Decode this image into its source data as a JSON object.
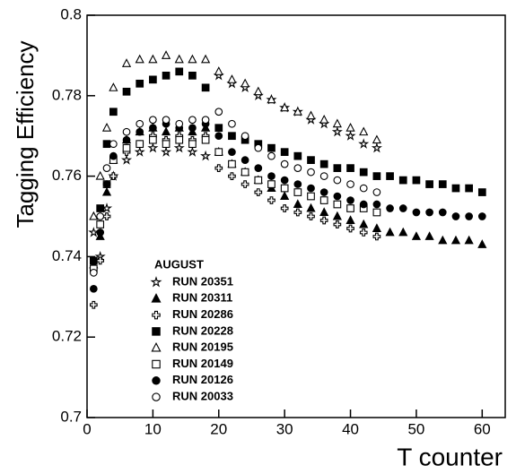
{
  "chart_data": {
    "type": "scatter",
    "xlabel": "T counter",
    "ylabel": "Tagging Efficiency",
    "legend_title": "AUGUST",
    "xlim": [
      0,
      63.5
    ],
    "ylim": [
      0.7,
      0.8
    ],
    "xticks": [
      0,
      10,
      20,
      30,
      40,
      50,
      60
    ],
    "yticks": [
      0.7,
      0.72,
      0.74,
      0.76,
      0.78,
      0.8
    ],
    "legend": "lower left",
    "series": [
      {
        "name": "RUN 20351",
        "marker": "star",
        "filled": false,
        "color": "#000000",
        "x": [
          1,
          2,
          3,
          4,
          6,
          8,
          10,
          12,
          14,
          16,
          18,
          20,
          22,
          24,
          26,
          28,
          30,
          32,
          34,
          36,
          38,
          40,
          42,
          44
        ],
        "values": [
          0.746,
          0.74,
          0.752,
          0.76,
          0.764,
          0.766,
          0.767,
          0.766,
          0.767,
          0.766,
          0.765,
          0.785,
          0.783,
          0.782,
          0.78,
          0.779,
          0.777,
          0.776,
          0.774,
          0.773,
          0.771,
          0.77,
          0.768,
          0.767
        ]
      },
      {
        "name": "RUN 20311",
        "marker": "triangle",
        "filled": true,
        "color": "#000000",
        "x": [
          1,
          2,
          3,
          4,
          6,
          8,
          10,
          12,
          14,
          16,
          18,
          20,
          22,
          24,
          26,
          28,
          30,
          32,
          34,
          36,
          38,
          40,
          42,
          44,
          46,
          48,
          50,
          52,
          54,
          56,
          58,
          60
        ],
        "values": [
          0.738,
          0.745,
          0.756,
          0.764,
          0.769,
          0.771,
          0.772,
          0.771,
          0.772,
          0.771,
          0.772,
          0.766,
          0.763,
          0.761,
          0.759,
          0.757,
          0.755,
          0.753,
          0.752,
          0.751,
          0.75,
          0.749,
          0.748,
          0.747,
          0.746,
          0.746,
          0.745,
          0.745,
          0.744,
          0.744,
          0.744,
          0.743
        ]
      },
      {
        "name": "RUN 20286",
        "marker": "cross",
        "filled": false,
        "color": "#000000",
        "x": [
          1,
          2,
          3,
          4,
          6,
          8,
          10,
          12,
          14,
          16,
          18,
          20,
          22,
          24,
          26,
          28,
          30,
          32,
          34,
          36,
          38,
          40,
          42,
          44
        ],
        "values": [
          0.728,
          0.739,
          0.75,
          0.76,
          0.766,
          0.768,
          0.77,
          0.769,
          0.77,
          0.769,
          0.77,
          0.762,
          0.76,
          0.758,
          0.756,
          0.754,
          0.752,
          0.751,
          0.75,
          0.749,
          0.748,
          0.747,
          0.746,
          0.745
        ]
      },
      {
        "name": "RUN 20228",
        "marker": "square",
        "filled": true,
        "color": "#000000",
        "x": [
          1,
          2,
          3,
          4,
          6,
          8,
          10,
          12,
          14,
          16,
          18,
          20,
          22,
          24,
          26,
          28,
          30,
          32,
          34,
          36,
          38,
          40,
          42,
          44,
          46,
          48,
          50,
          52,
          54,
          56,
          58,
          60
        ],
        "values": [
          0.739,
          0.752,
          0.768,
          0.776,
          0.781,
          0.783,
          0.784,
          0.785,
          0.786,
          0.785,
          0.782,
          0.772,
          0.77,
          0.769,
          0.768,
          0.767,
          0.766,
          0.765,
          0.764,
          0.763,
          0.762,
          0.762,
          0.761,
          0.76,
          0.76,
          0.759,
          0.759,
          0.758,
          0.758,
          0.757,
          0.757,
          0.756
        ]
      },
      {
        "name": "RUN 20195",
        "marker": "triangle",
        "filled": false,
        "color": "#000000",
        "x": [
          1,
          2,
          3,
          4,
          6,
          8,
          10,
          12,
          14,
          16,
          18,
          20,
          22,
          24,
          26,
          28,
          30,
          32,
          34,
          36,
          38,
          40,
          42,
          44
        ],
        "values": [
          0.75,
          0.76,
          0.772,
          0.782,
          0.788,
          0.789,
          0.789,
          0.79,
          0.789,
          0.789,
          0.789,
          0.786,
          0.784,
          0.783,
          0.781,
          0.779,
          0.777,
          0.776,
          0.775,
          0.774,
          0.773,
          0.772,
          0.771,
          0.769
        ]
      },
      {
        "name": "RUN 20149",
        "marker": "square",
        "filled": false,
        "color": "#000000",
        "x": [
          1,
          2,
          3,
          4,
          6,
          8,
          10,
          12,
          14,
          16,
          18,
          20,
          22,
          24,
          26,
          28,
          30,
          32,
          34,
          36,
          38,
          40,
          42,
          44
        ],
        "values": [
          0.737,
          0.748,
          0.758,
          0.764,
          0.767,
          0.768,
          0.769,
          0.768,
          0.769,
          0.768,
          0.769,
          0.766,
          0.763,
          0.761,
          0.759,
          0.758,
          0.757,
          0.756,
          0.755,
          0.754,
          0.753,
          0.752,
          0.752,
          0.751
        ]
      },
      {
        "name": "RUN 20126",
        "marker": "circle",
        "filled": true,
        "color": "#000000",
        "x": [
          1,
          2,
          3,
          4,
          6,
          8,
          10,
          12,
          14,
          16,
          18,
          20,
          22,
          24,
          26,
          28,
          30,
          32,
          34,
          36,
          38,
          40,
          42,
          44,
          46,
          48,
          50,
          52,
          54,
          56,
          58,
          60
        ],
        "values": [
          0.732,
          0.746,
          0.758,
          0.765,
          0.769,
          0.771,
          0.772,
          0.773,
          0.772,
          0.772,
          0.773,
          0.77,
          0.766,
          0.764,
          0.762,
          0.76,
          0.759,
          0.758,
          0.757,
          0.756,
          0.755,
          0.754,
          0.753,
          0.753,
          0.752,
          0.752,
          0.751,
          0.751,
          0.751,
          0.75,
          0.75,
          0.75
        ]
      },
      {
        "name": "RUN 20033",
        "marker": "circle",
        "filled": false,
        "color": "#000000",
        "x": [
          1,
          2,
          3,
          4,
          6,
          8,
          10,
          12,
          14,
          16,
          18,
          20,
          22,
          24,
          26,
          28,
          30,
          32,
          34,
          36,
          38,
          40,
          42,
          44
        ],
        "values": [
          0.736,
          0.75,
          0.762,
          0.768,
          0.771,
          0.773,
          0.774,
          0.774,
          0.773,
          0.774,
          0.774,
          0.776,
          0.773,
          0.77,
          0.767,
          0.765,
          0.763,
          0.762,
          0.761,
          0.76,
          0.759,
          0.758,
          0.757,
          0.756
        ]
      }
    ]
  }
}
